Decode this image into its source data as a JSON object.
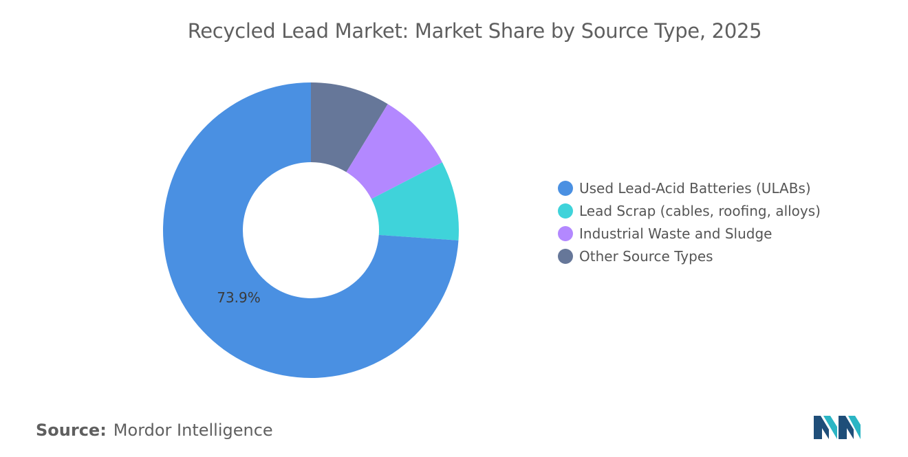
{
  "chart_data": {
    "type": "pie",
    "title": "Recycled Lead Market: Market Share by Source Type, 2025",
    "donut": true,
    "categories": [
      "Used Lead-Acid Batteries (ULABs)",
      "Lead Scrap (cables, roofing, alloys)",
      "Industrial Waste and Sludge",
      "Other Source Types"
    ],
    "values": [
      73.9,
      8.7,
      8.7,
      8.7
    ],
    "colors": [
      "#4a90e2",
      "#3fd3da",
      "#b388ff",
      "#667799"
    ],
    "data_labels": [
      "73.9%",
      "",
      "",
      ""
    ],
    "legend_position": "right"
  },
  "footer": {
    "source_label": "Source:",
    "source_text": "Mordor Intelligence"
  },
  "logo": {
    "icon": "mordor-intelligence-logo",
    "colors": [
      "#1f4e79",
      "#2bb5c4"
    ]
  }
}
